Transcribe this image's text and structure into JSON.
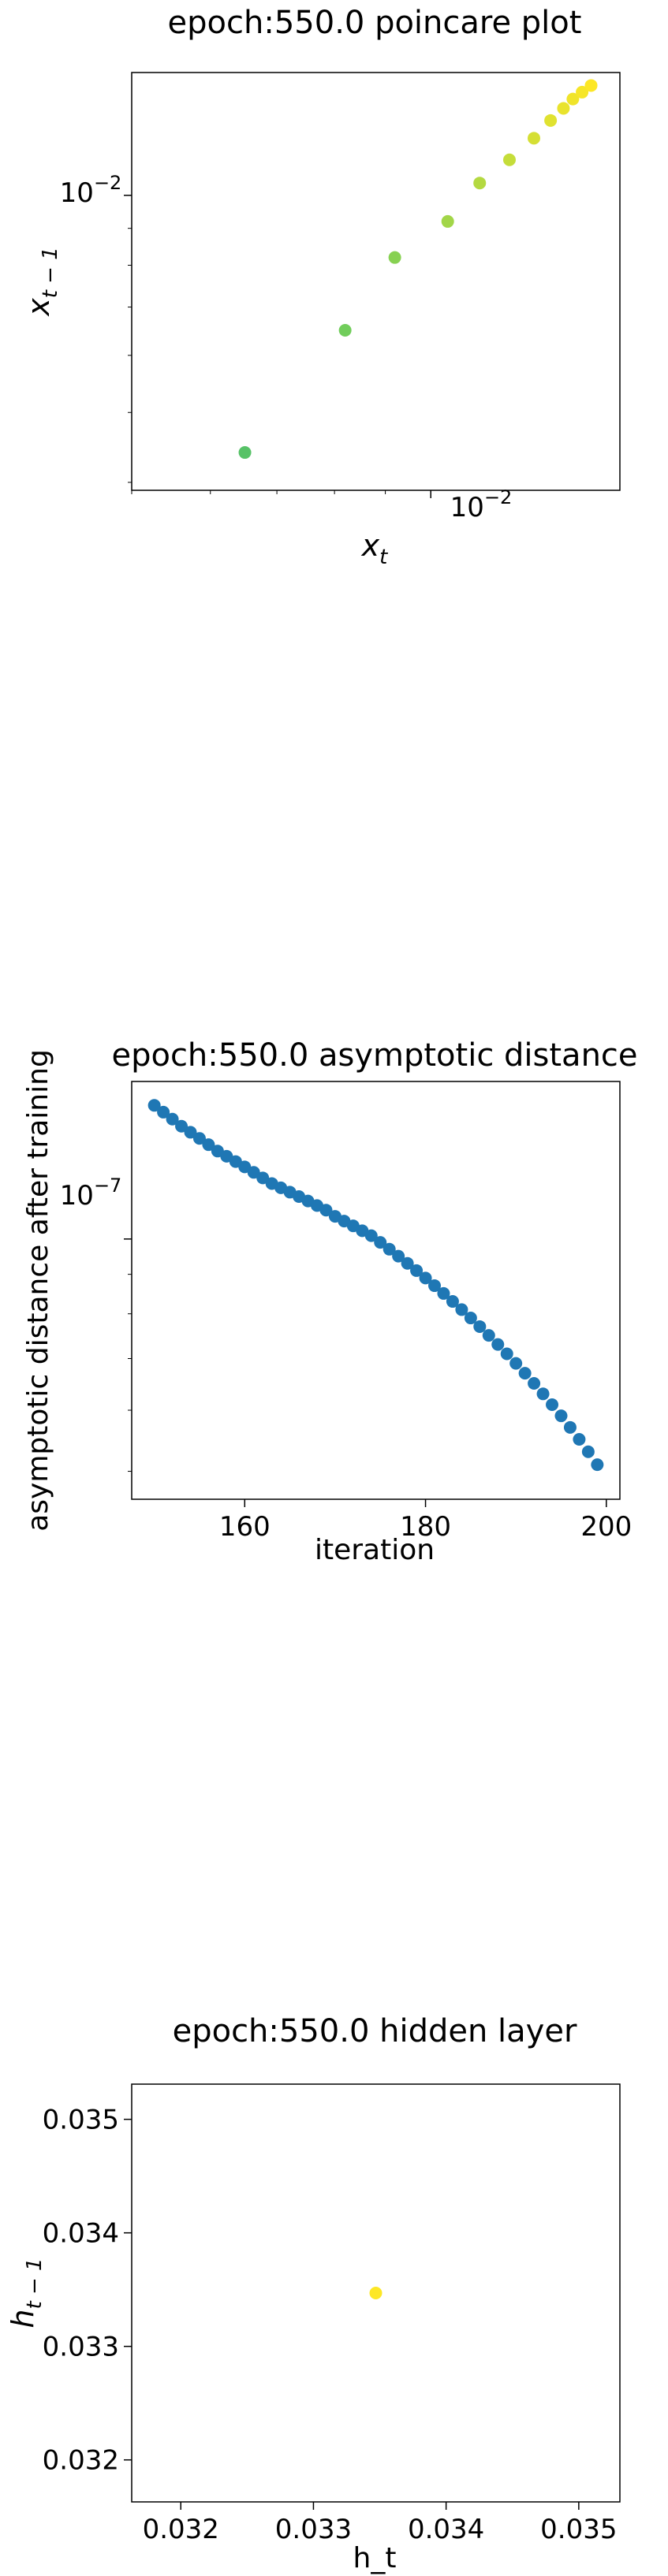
{
  "chart_data": [
    {
      "type": "scatter",
      "title": "epoch:550.0 poincare plot",
      "xlabel": "x",
      "xlabel_sub": "t",
      "ylabel": "x",
      "ylabel_sub": "t − 1",
      "xscale": "log",
      "yscale": "log",
      "xlim": [
        0.005,
        0.0155
      ],
      "ylim": [
        0.0039,
        0.0148
      ],
      "xticks": [
        {
          "value": 0.01,
          "base": "10",
          "exp": "−2"
        }
      ],
      "yticks": [
        {
          "value": 0.01,
          "base": "10",
          "exp": "−2"
        }
      ],
      "colormap": "viridis",
      "color_range": [
        0.0065,
        0.0145
      ],
      "points": [
        {
          "x": 0.0065,
          "y": 0.0044
        },
        {
          "x": 0.0082,
          "y": 0.0065
        },
        {
          "x": 0.0092,
          "y": 0.0082
        },
        {
          "x": 0.0104,
          "y": 0.0092
        },
        {
          "x": 0.0112,
          "y": 0.0104
        },
        {
          "x": 0.012,
          "y": 0.0112
        },
        {
          "x": 0.0127,
          "y": 0.012
        },
        {
          "x": 0.0132,
          "y": 0.0127
        },
        {
          "x": 0.0136,
          "y": 0.0132
        },
        {
          "x": 0.0139,
          "y": 0.0136
        },
        {
          "x": 0.0142,
          "y": 0.0139
        },
        {
          "x": 0.0145,
          "y": 0.0142
        }
      ]
    },
    {
      "type": "scatter",
      "title": "epoch:550.0 asymptotic distance",
      "xlabel": "iteration",
      "ylabel": "asymptotic distance after training",
      "yscale": "log",
      "xlim": [
        147.5,
        201.5
      ],
      "ylim": [
        4.6e-08,
        1.6e-07
      ],
      "xticks": [
        160,
        180,
        200
      ],
      "yticks": [
        {
          "value": 1e-07,
          "base": "10",
          "exp": "−7"
        }
      ],
      "color": "#1f77b4",
      "x": [
        150,
        151,
        152,
        153,
        154,
        155,
        156,
        157,
        158,
        159,
        160,
        161,
        162,
        163,
        164,
        165,
        166,
        167,
        168,
        169,
        170,
        171,
        172,
        173,
        174,
        175,
        176,
        177,
        178,
        179,
        180,
        181,
        182,
        183,
        184,
        185,
        186,
        187,
        188,
        189,
        190,
        191,
        192,
        193,
        194,
        195,
        196,
        197,
        198,
        199
      ],
      "y": [
        1.49e-07,
        1.46e-07,
        1.43e-07,
        1.4e-07,
        1.375e-07,
        1.35e-07,
        1.325e-07,
        1.3e-07,
        1.28e-07,
        1.26e-07,
        1.24e-07,
        1.22e-07,
        1.2e-07,
        1.18e-07,
        1.165e-07,
        1.15e-07,
        1.135e-07,
        1.12e-07,
        1.105e-07,
        1.09e-07,
        1.07e-07,
        1.055e-07,
        1.04e-07,
        1.025e-07,
        1.01e-07,
        9.9e-08,
        9.7e-08,
        9.5e-08,
        9.3e-08,
        9.1e-08,
        8.9e-08,
        8.7e-08,
        8.5e-08,
        8.3e-08,
        8.1e-08,
        7.9e-08,
        7.7e-08,
        7.5e-08,
        7.3e-08,
        7.1e-08,
        6.9e-08,
        6.7e-08,
        6.5e-08,
        6.3e-08,
        6.1e-08,
        5.9e-08,
        5.7e-08,
        5.5e-08,
        5.3e-08,
        5.1e-08
      ]
    },
    {
      "type": "scatter",
      "title": "epoch:550.0 hidden layer",
      "xlabel": "h_t",
      "ylabel": "h",
      "ylabel_sub": "t − 1",
      "xlim": [
        0.03163,
        0.03531
      ],
      "ylim": [
        0.03163,
        0.03531
      ],
      "xticks": [
        0.032,
        0.033,
        0.034,
        0.035
      ],
      "yticks": [
        0.032,
        0.033,
        0.034,
        0.035
      ],
      "xtick_labels": [
        "0.032",
        "0.033",
        "0.034",
        "0.035"
      ],
      "ytick_labels": [
        "0.032",
        "0.033",
        "0.034",
        "0.035"
      ],
      "color": "#fde725",
      "points": [
        {
          "x": 0.03347,
          "y": 0.03347
        }
      ]
    }
  ]
}
